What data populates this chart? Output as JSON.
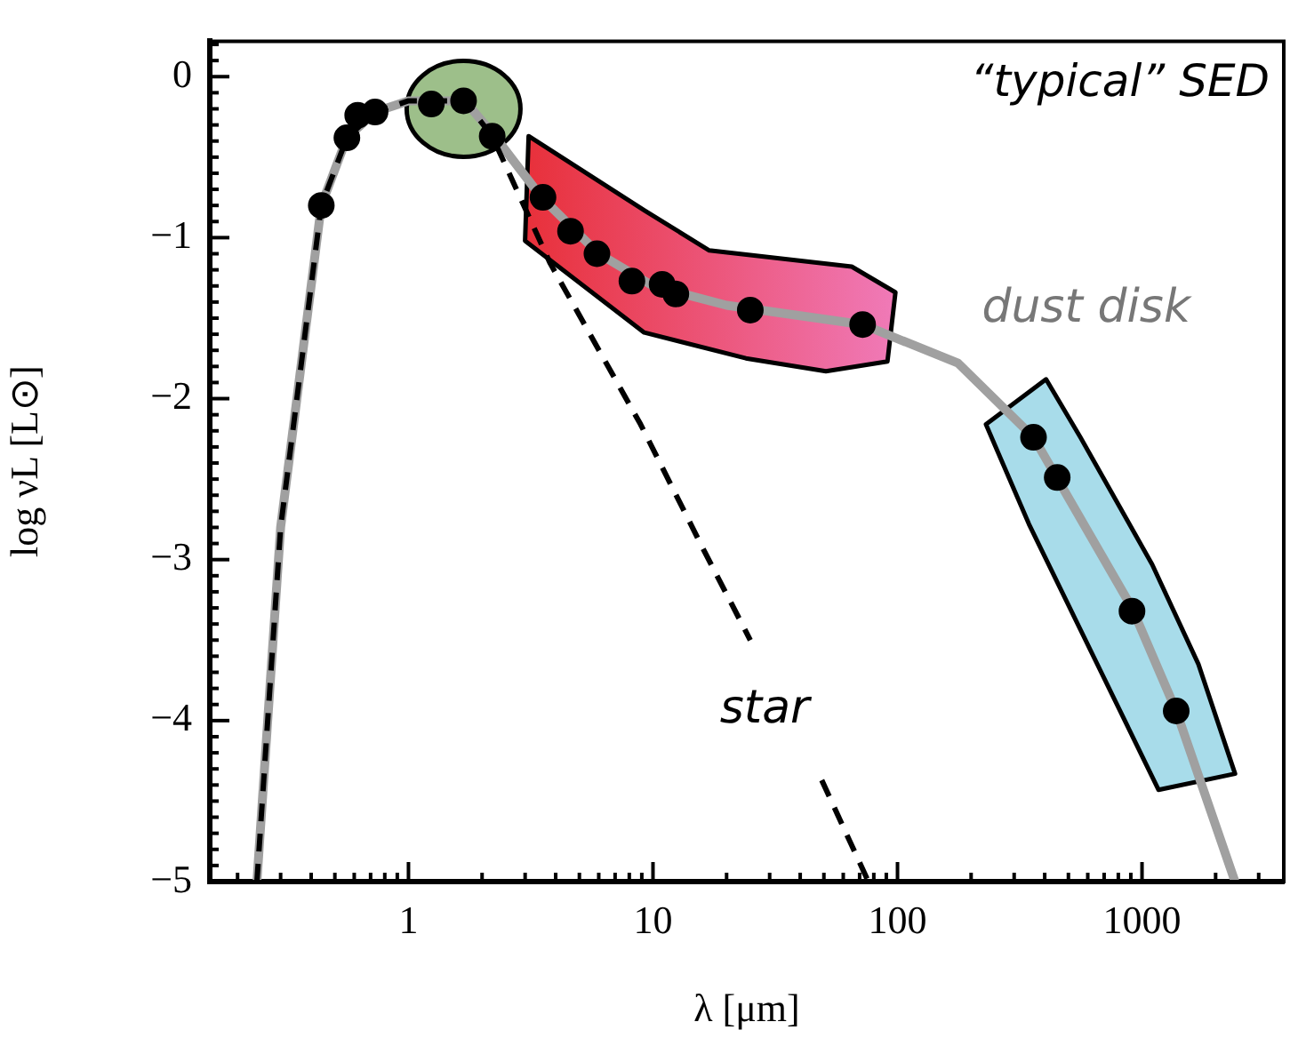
{
  "chart_data": {
    "type": "line",
    "title": "“typical” SED",
    "xlabel": "λ [μm]",
    "ylabel": "log νL [L⊙]",
    "log": "x",
    "xlim": [
      0.154,
      3800
    ],
    "ylim": [
      -5,
      0.22
    ],
    "xticks": [
      {
        "value": 0.2,
        "label": null
      },
      {
        "value": 0.3,
        "label": null
      },
      {
        "value": 0.4,
        "label": null
      },
      {
        "value": 0.5,
        "label": null
      },
      {
        "value": 0.6,
        "label": null
      },
      {
        "value": 0.7,
        "label": null
      },
      {
        "value": 0.8,
        "label": null
      },
      {
        "value": 0.9,
        "label": null
      },
      1,
      {
        "value": 2,
        "label": null
      },
      {
        "value": 3,
        "label": null
      },
      {
        "value": 4,
        "label": null
      },
      {
        "value": 5,
        "label": null
      },
      {
        "value": 6,
        "label": null
      },
      {
        "value": 7,
        "label": null
      },
      {
        "value": 8,
        "label": null
      },
      {
        "value": 9,
        "label": null
      },
      10,
      {
        "value": 20,
        "label": null
      },
      {
        "value": 30,
        "label": null
      },
      {
        "value": 40,
        "label": null
      },
      {
        "value": 50,
        "label": null
      },
      {
        "value": 60,
        "label": null
      },
      {
        "value": 70,
        "label": null
      },
      {
        "value": 80,
        "label": null
      },
      {
        "value": 90,
        "label": null
      },
      100,
      {
        "value": 200,
        "label": null
      },
      {
        "value": 300,
        "label": null
      },
      {
        "value": 400,
        "label": null
      },
      {
        "value": 500,
        "label": null
      },
      {
        "value": 600,
        "label": null
      },
      {
        "value": 700,
        "label": null
      },
      {
        "value": 800,
        "label": null
      },
      {
        "value": 900,
        "label": null
      },
      1000,
      {
        "value": 2000,
        "label": null
      },
      {
        "value": 3000,
        "label": null
      }
    ],
    "yticks": [
      {
        "value": -5,
        "label": "−5"
      },
      {
        "value": -4.9,
        "label": null
      },
      {
        "value": -4.8,
        "label": null
      },
      {
        "value": -4.7,
        "label": null
      },
      {
        "value": -4.6,
        "label": null
      },
      {
        "value": -4.5,
        "label": null
      },
      {
        "value": -4.4,
        "label": null
      },
      {
        "value": -4.3,
        "label": null
      },
      {
        "value": -4.2,
        "label": null
      },
      {
        "value": -4.1,
        "label": null
      },
      {
        "value": -4,
        "label": "−4"
      },
      {
        "value": -3.9,
        "label": null
      },
      {
        "value": -3.8,
        "label": null
      },
      {
        "value": -3.7,
        "label": null
      },
      {
        "value": -3.6,
        "label": null
      },
      {
        "value": -3.5,
        "label": null
      },
      {
        "value": -3.4,
        "label": null
      },
      {
        "value": -3.3,
        "label": null
      },
      {
        "value": -3.2,
        "label": null
      },
      {
        "value": -3.1,
        "label": null
      },
      {
        "value": -3,
        "label": "−3"
      },
      {
        "value": -2.9,
        "label": null
      },
      {
        "value": -2.8,
        "label": null
      },
      {
        "value": -2.7,
        "label": null
      },
      {
        "value": -2.6,
        "label": null
      },
      {
        "value": -2.5,
        "label": null
      },
      {
        "value": -2.4,
        "label": null
      },
      {
        "value": -2.3,
        "label": null
      },
      {
        "value": -2.2,
        "label": null
      },
      {
        "value": -2.1,
        "label": null
      },
      {
        "value": -2,
        "label": "−2"
      },
      {
        "value": -1.9,
        "label": null
      },
      {
        "value": -1.8,
        "label": null
      },
      {
        "value": -1.7,
        "label": null
      },
      {
        "value": -1.6,
        "label": null
      },
      {
        "value": -1.5,
        "label": null
      },
      {
        "value": -1.4,
        "label": null
      },
      {
        "value": -1.3,
        "label": null
      },
      {
        "value": -1.2,
        "label": null
      },
      {
        "value": -1.1,
        "label": null
      },
      {
        "value": -1,
        "label": "−1"
      },
      {
        "value": -0.9,
        "label": null
      },
      {
        "value": -0.8,
        "label": null
      },
      {
        "value": -0.7,
        "label": null
      },
      {
        "value": -0.6,
        "label": null
      },
      {
        "value": -0.5,
        "label": null
      },
      {
        "value": -0.4,
        "label": null
      },
      {
        "value": -0.3,
        "label": null
      },
      {
        "value": -0.2,
        "label": null
      },
      {
        "value": -0.1,
        "label": null
      },
      0,
      {
        "value": 0.1,
        "label": null
      },
      {
        "value": 0.2,
        "label": null
      }
    ],
    "series": [
      {
        "name": "dust disk",
        "color": "#a0a0a0",
        "line_style": "solid",
        "marker": "none",
        "x": [
          0.24,
          0.3,
          0.44,
          0.56,
          0.73,
          1.0,
          1.7,
          2.2,
          3.5,
          6,
          10,
          20,
          72,
          177,
          360,
          910,
          1380,
          2400
        ],
        "values": [
          -5,
          -2.8,
          -0.8,
          -0.38,
          -0.22,
          -0.15,
          -0.15,
          -0.35,
          -0.75,
          -1.1,
          -1.3,
          -1.42,
          -1.54,
          -1.78,
          -2.24,
          -3.3,
          -3.94,
          -5
        ]
      },
      {
        "name": "star",
        "color": "#000000",
        "line_style": "dashed",
        "marker": "none",
        "x": [
          0.24,
          0.3,
          0.44,
          0.56,
          0.73,
          1.0,
          1.7,
          2.2,
          3.8,
          8.9,
          16,
          25,
          33,
          49,
          76
        ],
        "values": [
          -5,
          -2.8,
          -0.8,
          -0.38,
          -0.22,
          -0.15,
          -0.15,
          -0.37,
          -1.16,
          -2.16,
          -2.93,
          -3.5,
          null,
          -4.37,
          -5
        ]
      },
      {
        "type": "scatter",
        "color": "#000000",
        "marker": "circle",
        "x": [
          0.44,
          0.56,
          0.62,
          0.73,
          1.24,
          1.68,
          2.2,
          3.55,
          4.6,
          5.9,
          8.2,
          10.9,
          12.4,
          25,
          72,
          360,
          450,
          910,
          1380
        ],
        "values": [
          -0.8,
          -0.38,
          -0.24,
          -0.22,
          -0.17,
          -0.15,
          -0.37,
          -0.75,
          -0.96,
          -1.1,
          -1.27,
          -1.29,
          -1.35,
          -1.45,
          -1.54,
          -2.24,
          -2.49,
          -3.32,
          -3.94
        ]
      }
    ]
  }
}
